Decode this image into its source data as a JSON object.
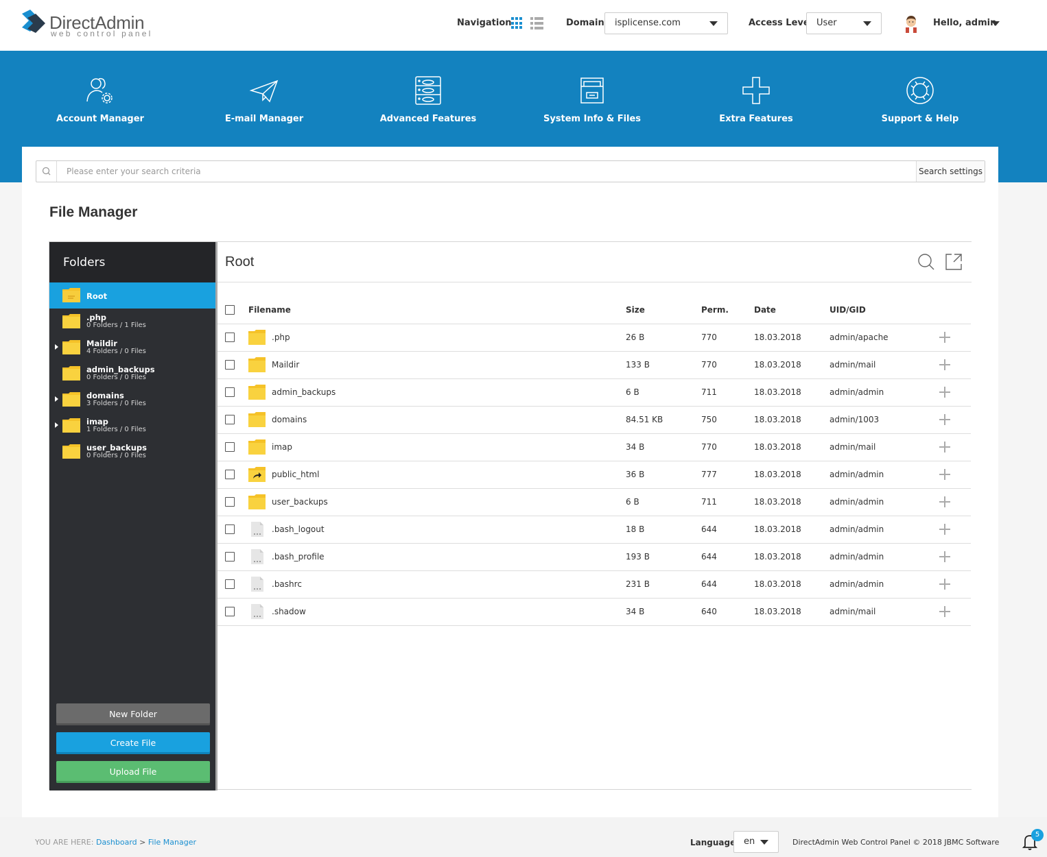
{
  "header": {
    "logo_title": "DirectAdmin",
    "logo_subtitle": "web control panel",
    "navigation_label": "Navigation",
    "domain_label": "Domain",
    "domain_value": "isplicense.com",
    "access_label": "Access Level",
    "access_value": "User",
    "greeting": "Hello, admin",
    "accent_color": "#1382bf"
  },
  "nav": [
    {
      "label": "Account Manager",
      "icon": "users-gear-icon"
    },
    {
      "label": "E-mail Manager",
      "icon": "paper-plane-icon"
    },
    {
      "label": "Advanced Features",
      "icon": "server-database-icon"
    },
    {
      "label": "System Info & Files",
      "icon": "file-drawer-icon"
    },
    {
      "label": "Extra Features",
      "icon": "plus-icon"
    },
    {
      "label": "Support & Help",
      "icon": "lifebuoy-icon"
    }
  ],
  "search": {
    "placeholder": "Please enter your search criteria",
    "settings_label": "Search settings"
  },
  "page_title": "File Manager",
  "file_manager": {
    "sidebar_title": "Folders",
    "current_folder": "Root",
    "folders": [
      {
        "name": "Root",
        "meta": "",
        "expandable": false,
        "active": true
      },
      {
        "name": ".php",
        "meta": "0 Folders / 1 Files",
        "expandable": false,
        "active": false
      },
      {
        "name": "Maildir",
        "meta": "4 Folders / 0 Files",
        "expandable": true,
        "active": false
      },
      {
        "name": "admin_backups",
        "meta": "0 Folders / 0 Files",
        "expandable": false,
        "active": false
      },
      {
        "name": "domains",
        "meta": "3 Folders / 0 Files",
        "expandable": true,
        "active": false
      },
      {
        "name": "imap",
        "meta": "1 Folders / 0 Files",
        "expandable": true,
        "active": false
      },
      {
        "name": "user_backups",
        "meta": "0 Folders / 0 Files",
        "expandable": false,
        "active": false
      }
    ],
    "buttons": {
      "new_folder": "New Folder",
      "create_file": "Create File",
      "upload_file": "Upload File"
    },
    "columns": {
      "filename": "Filename",
      "size": "Size",
      "perm": "Perm.",
      "date": "Date",
      "uid": "UID/GID"
    },
    "files": [
      {
        "name": ".php",
        "type": "folder",
        "size": "26 B",
        "perm": "770",
        "date": "18.03.2018",
        "uid": "admin/apache"
      },
      {
        "name": "Maildir",
        "type": "folder",
        "size": "133 B",
        "perm": "770",
        "date": "18.03.2018",
        "uid": "admin/mail"
      },
      {
        "name": "admin_backups",
        "type": "folder",
        "size": "6 B",
        "perm": "711",
        "date": "18.03.2018",
        "uid": "admin/admin"
      },
      {
        "name": "domains",
        "type": "folder",
        "size": "84.51 KB",
        "perm": "750",
        "date": "18.03.2018",
        "uid": "admin/1003"
      },
      {
        "name": "imap",
        "type": "folder",
        "size": "34 B",
        "perm": "770",
        "date": "18.03.2018",
        "uid": "admin/mail"
      },
      {
        "name": "public_html",
        "type": "link",
        "size": "36 B",
        "perm": "777",
        "date": "18.03.2018",
        "uid": "admin/admin"
      },
      {
        "name": "user_backups",
        "type": "folder",
        "size": "6 B",
        "perm": "711",
        "date": "18.03.2018",
        "uid": "admin/admin"
      },
      {
        "name": ".bash_logout",
        "type": "file",
        "size": "18 B",
        "perm": "644",
        "date": "18.03.2018",
        "uid": "admin/admin"
      },
      {
        "name": ".bash_profile",
        "type": "file",
        "size": "193 B",
        "perm": "644",
        "date": "18.03.2018",
        "uid": "admin/admin"
      },
      {
        "name": ".bashrc",
        "type": "file",
        "size": "231 B",
        "perm": "644",
        "date": "18.03.2018",
        "uid": "admin/admin"
      },
      {
        "name": ".shadow",
        "type": "file",
        "size": "34 B",
        "perm": "640",
        "date": "18.03.2018",
        "uid": "admin/mail"
      }
    ]
  },
  "footer": {
    "you_are_here": "YOU ARE HERE:",
    "crumb_dashboard": "Dashboard",
    "crumb_sep": ">",
    "crumb_current": "File Manager",
    "language_label": "Language",
    "language_value": "en",
    "copyright": "DirectAdmin Web Control Panel © 2018 JBMC Software",
    "notification_count": "5"
  }
}
